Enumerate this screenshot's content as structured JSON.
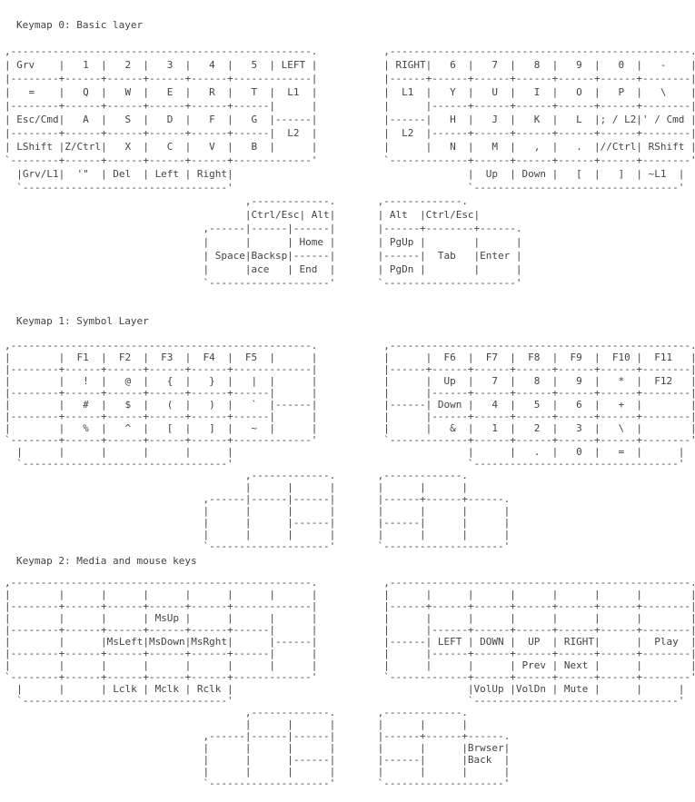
{
  "colors": {
    "background": "#ffffff",
    "text": "#3f4447"
  },
  "sections": [
    {
      "title": "Keymap 0: Basic layer",
      "art": ",--------------------------------------------------.           ,--------------------------------------------------.\n| Grv    |   1  |   2  |   3  |   4  |   5  | LEFT |           | RIGHT|   6  |   7  |   8  |   9  |   0  |   -    |\n|--------+------+------+------+------+-------------|           |------+------+------+------+------+------+--------|\n|   =    |   Q  |   W  |   E  |   R  |   T  |  L1  |           |  L1  |   Y  |   U  |   I  |   O  |   P  |   \\    |\n|--------+------+------+------+------+------|      |           |      |------+------+------+------+------+--------|\n| Esc/Cmd|   A  |   S  |   D  |   F  |   G  |------|           |------|   H  |   J  |   K  |   L  |; / L2|' / Cmd |\n|--------+------+------+------+------+------|  L2  |           |  L2  |------+------+------+------+------+--------|\n| LShift |Z/Ctrl|   X  |   C  |   V  |   B  |      |           |      |   N  |   M  |   ,  |   .  |//Ctrl| RShift |\n`--------+------+------+------+------+-------------'           `-------------+------+------+------+------+--------'\n  |Grv/L1|  '\"  | Del  | Left | Right|                                       |  Up  | Down |   [  |   ]  | ~L1  |\n  `----------------------------------'                                       `----------------------------------'\n                                        ,-------------.       ,-------------.\n                                        |Ctrl/Esc| Alt|       | Alt  |Ctrl/Esc|\n                                 ,------|------|------|       |------+--------+------.\n                                 |      |      | Home |       | PgUp |        |      |\n                                 | Space|Backsp|------|       |------|  Tab   |Enter |\n                                 |      |ace   | End  |       | PgDn |        |      |\n                                 `--------------------'       `----------------------'"
    },
    {
      "title": "Keymap 1: Symbol Layer",
      "art": ",--------------------------------------------------.           ,--------------------------------------------------.\n|        |  F1  |  F2  |  F3  |  F4  |  F5  |      |           |      |  F6  |  F7  |  F8  |  F9  |  F10 |  F11   |\n|--------+------+------+------+------+-------------|           |------+------+------+------+------+------+--------|\n|        |   !  |   @  |   {  |   }  |   |  |      |           |      |  Up  |   7  |   8  |   9  |   *  |  F12   |\n|--------+------+------+------+------+------|      |           |      |------+------+------+------+------+--------|\n|        |   #  |   $  |   (  |   )  |   `  |------|           |------| Down |   4  |   5  |   6  |   +  |        |\n|--------+------+------+------+------+------|      |           |      |------+------+------+------+------+--------|\n|        |   %  |   ^  |   [  |   ]  |   ~  |      |           |      |   &  |   1  |   2  |   3  |   \\  |        |\n`--------+------+------+------+------+-------------'           `-------------+------+------+------+------+--------'\n  |      |      |      |      |      |                                       |      |   .  |   0  |   =  |      |\n  `----------------------------------'                                       `----------------------------------'\n                                        ,-------------.       ,-------------.\n                                        |      |      |       |      |      |\n                                 ,------|------|------|       |------+------+------.\n                                 |      |      |      |       |      |      |      |\n                                 |      |      |------|       |------|      |      |\n                                 |      |      |      |       |      |      |      |\n                                 `--------------------'       `--------------------'"
    },
    {
      "title": "Keymap 2: Media and mouse keys",
      "art": ",--------------------------------------------------.           ,--------------------------------------------------.\n|        |      |      |      |      |      |      |           |      |      |      |      |      |      |        |\n|--------+------+------+------+------+-------------|           |------+------+------+------+------+------+--------|\n|        |      |      | MsUp |      |      |      |           |      |      |      |      |      |      |        |\n|--------+------+------+------+------+------|      |           |      |------+------+------+------+------+--------|\n|        |      |MsLeft|MsDown|MsRght|      |------|           |------| LEFT | DOWN |  UP  | RIGHT|      |  Play  |\n|--------+------+------+------+------+------|      |           |      |------+------+------+------+------+--------|\n|        |      |      |      |      |      |      |           |      |      |      | Prev | Next |      |        |\n`--------+------+------+------+------+-------------'           `-------------+------+------+------+------+--------'\n  |      |      | Lclk | Mclk | Rclk |                                       |VolUp |VolDn | Mute |      |      |\n  `----------------------------------'                                       `----------------------------------'\n                                        ,-------------.       ,-------------.\n                                        |      |      |       |      |      |\n                                 ,------|------|------|       |------+------+------.\n                                 |      |      |      |       |      |      |Brwser|\n                                 |      |      |------|       |------|      |Back  |\n                                 |      |      |      |       |      |      |      |\n                                 `--------------------'       `--------------------'"
    }
  ]
}
